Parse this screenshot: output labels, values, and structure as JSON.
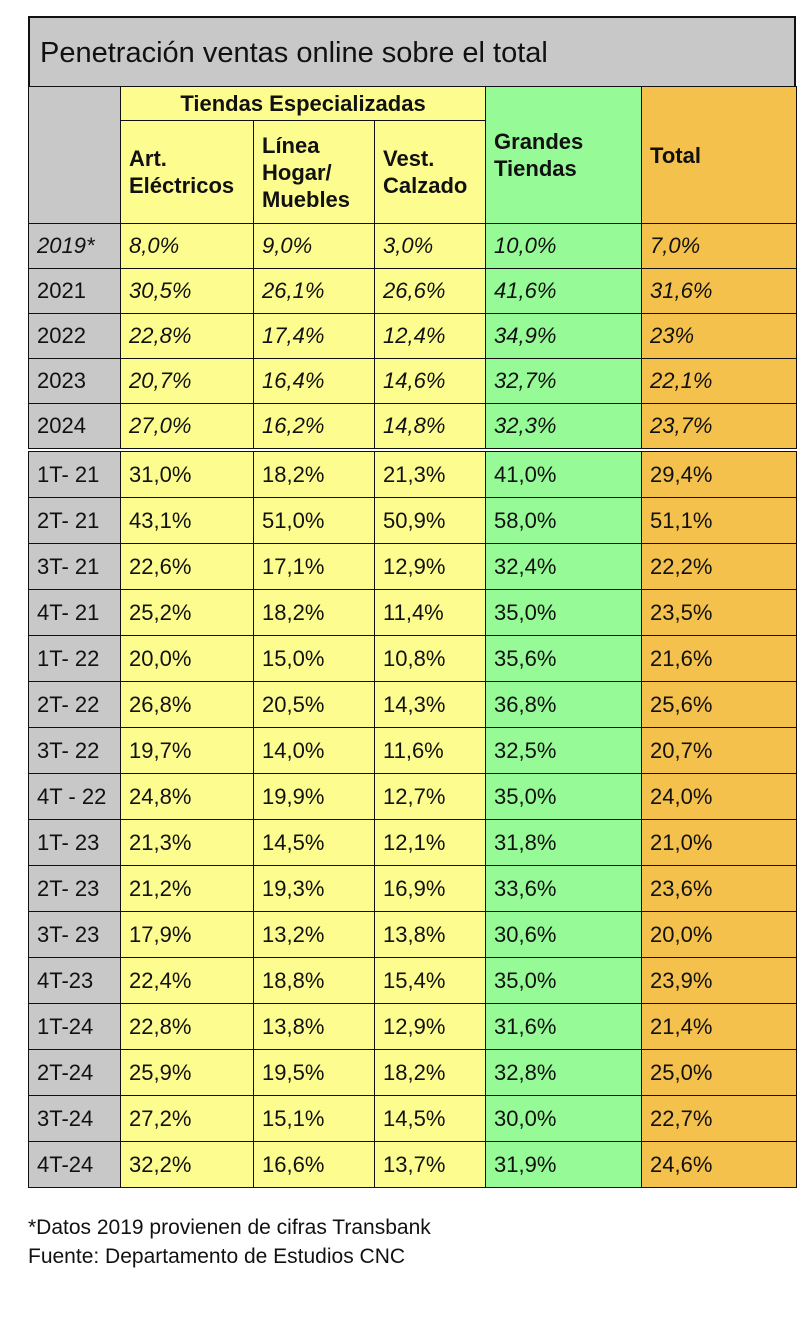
{
  "chart_data": {
    "type": "table",
    "title": "Penetración ventas online sobre el total",
    "group_header": "Tiendas Especializadas",
    "columns": [
      "Art. Eléctricos",
      "Línea Hogar/ Muebles",
      "Vest. Calzado",
      "Grandes Tiendas",
      "Total"
    ],
    "annual_rows": [
      {
        "period": "2019*",
        "values": [
          "8,0%",
          "9,0%",
          "3,0%",
          "10,0%",
          "7,0%"
        ]
      },
      {
        "period": "2021",
        "values": [
          "30,5%",
          "26,1%",
          "26,6%",
          "41,6%",
          "31,6%"
        ]
      },
      {
        "period": "2022",
        "values": [
          "22,8%",
          "17,4%",
          "12,4%",
          "34,9%",
          "23%"
        ]
      },
      {
        "period": "2023",
        "values": [
          "20,7%",
          "16,4%",
          "14,6%",
          "32,7%",
          "22,1%"
        ]
      },
      {
        "period": "2024",
        "values": [
          "27,0%",
          "16,2%",
          "14,8%",
          "32,3%",
          "23,7%"
        ]
      }
    ],
    "quarterly_rows": [
      {
        "period": "1T- 21",
        "values": [
          "31,0%",
          "18,2%",
          "21,3%",
          "41,0%",
          "29,4%"
        ]
      },
      {
        "period": "2T- 21",
        "values": [
          "43,1%",
          "51,0%",
          "50,9%",
          "58,0%",
          "51,1%"
        ]
      },
      {
        "period": "3T- 21",
        "values": [
          "22,6%",
          "17,1%",
          "12,9%",
          "32,4%",
          "22,2%"
        ]
      },
      {
        "period": "4T- 21",
        "values": [
          "25,2%",
          "18,2%",
          "11,4%",
          "35,0%",
          "23,5%"
        ]
      },
      {
        "period": "1T- 22",
        "values": [
          "20,0%",
          "15,0%",
          "10,8%",
          "35,6%",
          "21,6%"
        ]
      },
      {
        "period": "2T- 22",
        "values": [
          "26,8%",
          "20,5%",
          "14,3%",
          "36,8%",
          "25,6%"
        ]
      },
      {
        "period": "3T- 22",
        "values": [
          "19,7%",
          "14,0%",
          "11,6%",
          "32,5%",
          "20,7%"
        ]
      },
      {
        "period": "4T - 22",
        "values": [
          "24,8%",
          "19,9%",
          "12,7%",
          "35,0%",
          "24,0%"
        ]
      },
      {
        "period": "1T- 23",
        "values": [
          "21,3%",
          "14,5%",
          "12,1%",
          "31,8%",
          "21,0%"
        ]
      },
      {
        "period": "2T- 23",
        "values": [
          "21,2%",
          "19,3%",
          "16,9%",
          "33,6%",
          "23,6%"
        ]
      },
      {
        "period": "3T- 23",
        "values": [
          "17,9%",
          "13,2%",
          "13,8%",
          "30,6%",
          "20,0%"
        ]
      },
      {
        "period": "4T-23",
        "values": [
          "22,4%",
          "18,8%",
          "15,4%",
          "35,0%",
          "23,9%"
        ]
      },
      {
        "period": "1T-24",
        "values": [
          "22,8%",
          "13,8%",
          "12,9%",
          "31,6%",
          "21,4%"
        ]
      },
      {
        "period": "2T-24",
        "values": [
          "25,9%",
          "19,5%",
          "18,2%",
          "32,8%",
          "25,0%"
        ]
      },
      {
        "period": "3T-24",
        "values": [
          "27,2%",
          "15,1%",
          "14,5%",
          "30,0%",
          "22,7%"
        ]
      },
      {
        "period": "4T-24",
        "values": [
          "32,2%",
          "16,6%",
          "13,7%",
          "31,9%",
          "24,6%"
        ]
      }
    ],
    "colors": {
      "period_column": "#c8c8c8",
      "specialized_stores": "#fdfd8f",
      "department_stores": "#96fb96",
      "total": "#f4c14c"
    }
  },
  "notes": {
    "footnote": "*Datos 2019 provienen de cifras Transbank",
    "source": "Fuente: Departamento de Estudios CNC"
  }
}
